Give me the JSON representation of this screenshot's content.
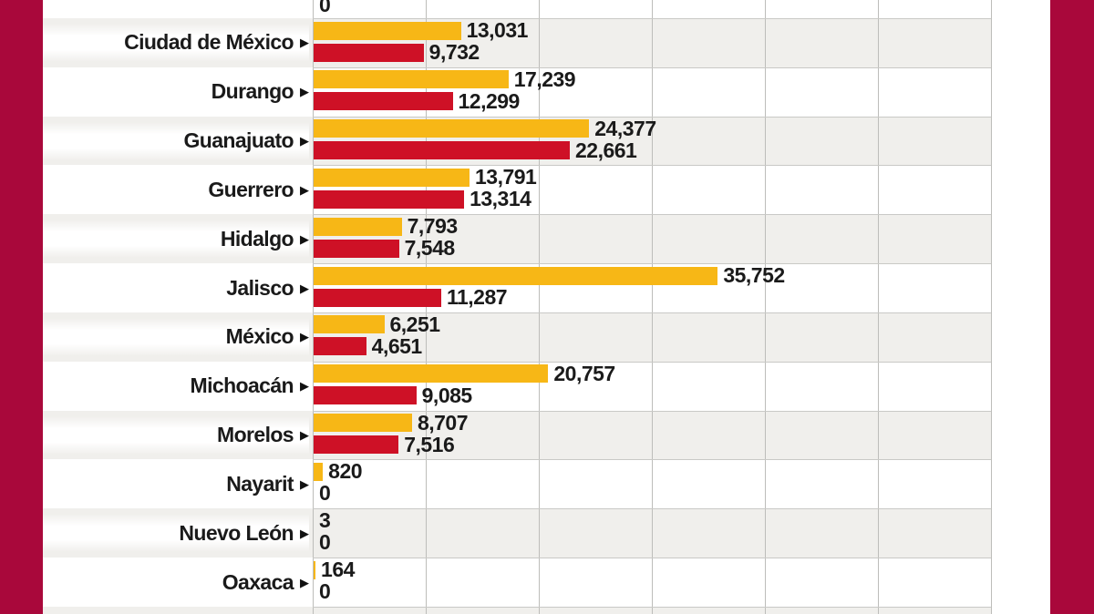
{
  "palette": {
    "border_maroon": "#A9083B",
    "bar_yellow": "#F7B716",
    "bar_red": "#CE1126",
    "row_stripe_gray": "#F0EFEC",
    "row_white": "#FFFFFF",
    "gridline": "#BDBDBA",
    "row_line": "#C9C9C6",
    "text": "#1A1A1A"
  },
  "chart_data": {
    "type": "bar",
    "orientation": "horizontal",
    "row_marker": "▶",
    "categories": [
      "Ciudad de México",
      "Durango",
      "Guanajuato",
      "Guerrero",
      "Hidalgo",
      "Jalisco",
      "México",
      "Michoacán",
      "Morelos",
      "Nayarit",
      "Nuevo León",
      "Oaxaca"
    ],
    "series": [
      {
        "name": "yellow-series",
        "color": "#F7B716",
        "values": [
          13031,
          17239,
          24377,
          13791,
          7793,
          35752,
          6251,
          20757,
          8707,
          820,
          3,
          164
        ],
        "labels": [
          "13,031",
          "17,239",
          "24,377",
          "13,791",
          "7,793",
          "35,752",
          "6,251",
          "20,757",
          "8,707",
          "820",
          "3",
          "164"
        ]
      },
      {
        "name": "red-series",
        "color": "#CE1126",
        "values": [
          9732,
          12299,
          22661,
          13314,
          7548,
          11287,
          4651,
          9085,
          7516,
          0,
          0,
          0
        ],
        "labels": [
          "9,732",
          "12,299",
          "22,661",
          "13,314",
          "7,548",
          "11,287",
          "4,651",
          "9,085",
          "7,516",
          "0",
          "0",
          "0"
        ]
      }
    ],
    "x_axis": {
      "min": 0,
      "max": 60000,
      "gridline_interval": 10000,
      "tick_labels_visible": false
    },
    "legend_visible": false,
    "cropped_top_row": {
      "red_value_label": "0"
    },
    "cropped_bottom_row": {
      "visible": true
    }
  }
}
